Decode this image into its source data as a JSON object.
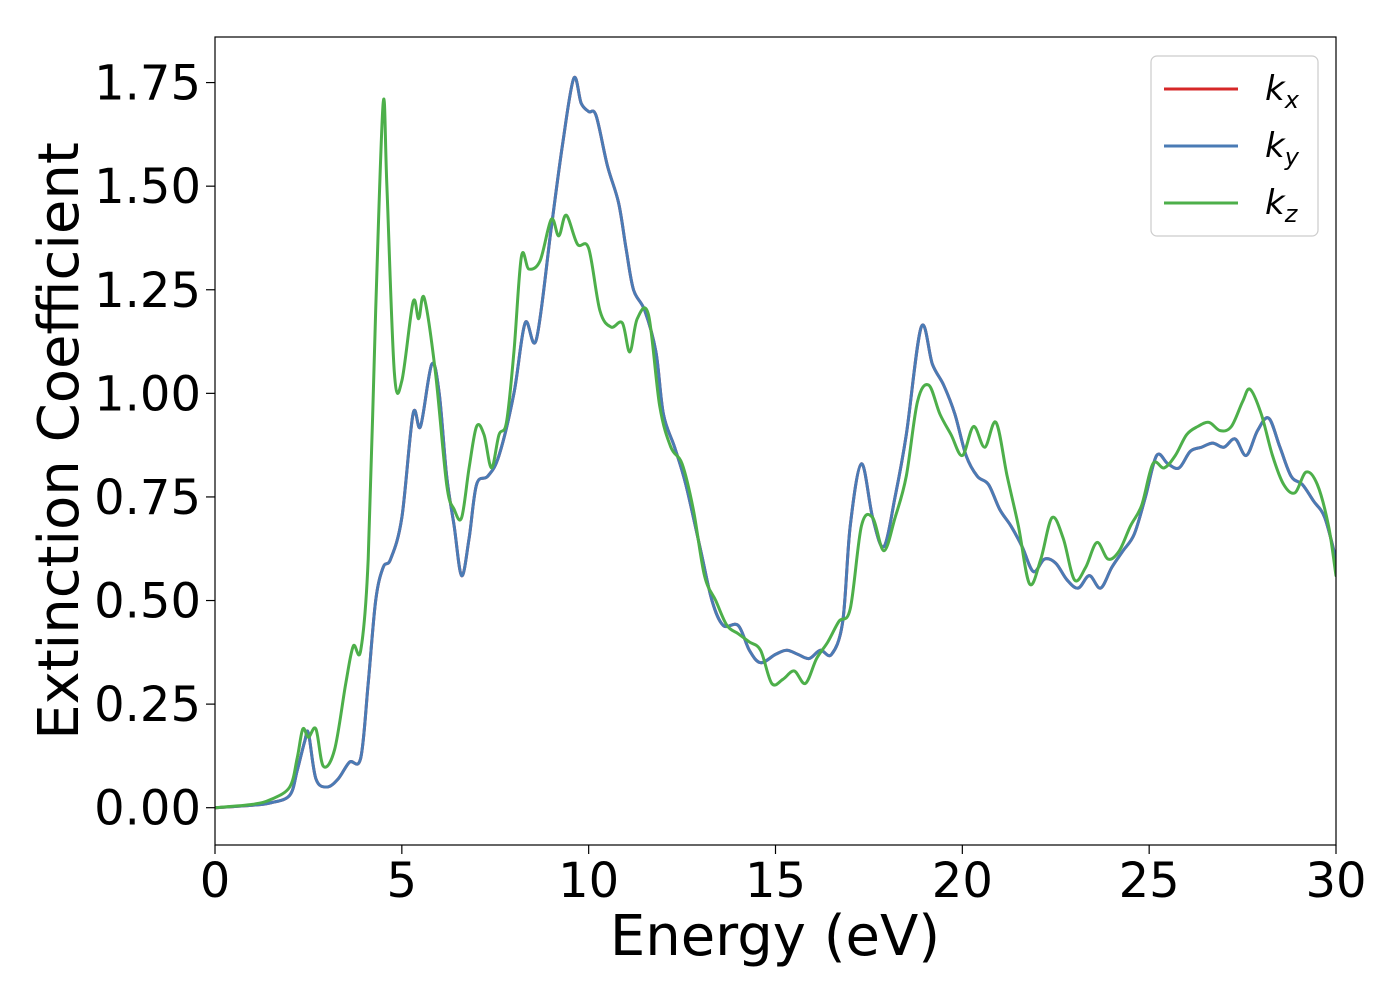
{
  "chart_data": {
    "type": "line",
    "title": "",
    "xlabel": "Energy (eV)",
    "ylabel": "Extinction Coefficient",
    "xlim": [
      0,
      30
    ],
    "ylim": [
      -0.09,
      1.86
    ],
    "xticks": [
      0,
      5,
      10,
      15,
      20,
      25,
      30
    ],
    "xtick_labels": [
      "0",
      "5",
      "10",
      "15",
      "20",
      "25",
      "30"
    ],
    "yticks": [
      0,
      0.25,
      0.5,
      0.75,
      1.0,
      1.25,
      1.5,
      1.75
    ],
    "ytick_labels": [
      "0.00",
      "0.25",
      "0.50",
      "0.75",
      "1.00",
      "1.25",
      "1.50",
      "1.75"
    ],
    "grid": false,
    "legend": "top-right",
    "series": [
      {
        "name": "kx",
        "base": "k",
        "sub": "x",
        "color": "#d62728",
        "x": [
          0,
          1,
          1.5,
          2,
          2.2,
          2.4,
          2.5,
          2.7,
          3,
          3.3,
          3.6,
          3.9,
          4.1,
          4.3,
          4.5,
          4.7,
          5,
          5.3,
          5.5,
          5.8,
          6,
          6.2,
          6.4,
          6.6,
          6.8,
          7,
          7.3,
          7.6,
          8,
          8.3,
          8.6,
          9,
          9.3,
          9.6,
          9.8,
          10,
          10.2,
          10.5,
          10.8,
          11,
          11.2,
          11.5,
          11.8,
          12,
          12.3,
          12.6,
          13,
          13.3,
          13.6,
          14,
          14.3,
          14.6,
          15,
          15.3,
          15.6,
          15.9,
          16.2,
          16.5,
          16.8,
          17,
          17.3,
          17.6,
          17.9,
          18.2,
          18.5,
          18.9,
          19.2,
          19.5,
          19.8,
          20.1,
          20.4,
          20.7,
          21,
          21.3,
          21.6,
          21.9,
          22.2,
          22.5,
          22.8,
          23.1,
          23.4,
          23.7,
          24,
          24.3,
          24.6,
          24.9,
          25.2,
          25.5,
          25.8,
          26.1,
          26.4,
          26.7,
          27,
          27.3,
          27.6,
          27.9,
          28.2,
          28.5,
          28.8,
          29.1,
          29.4,
          29.7,
          30
        ],
        "y": [
          0,
          0.006,
          0.012,
          0.03,
          0.09,
          0.16,
          0.18,
          0.07,
          0.05,
          0.07,
          0.11,
          0.12,
          0.3,
          0.5,
          0.58,
          0.6,
          0.7,
          0.95,
          0.92,
          1.07,
          1.0,
          0.8,
          0.68,
          0.56,
          0.65,
          0.78,
          0.8,
          0.85,
          1.0,
          1.17,
          1.13,
          1.4,
          1.6,
          1.76,
          1.7,
          1.68,
          1.67,
          1.55,
          1.46,
          1.35,
          1.25,
          1.2,
          1.1,
          0.95,
          0.87,
          0.78,
          0.62,
          0.5,
          0.44,
          0.44,
          0.38,
          0.35,
          0.37,
          0.38,
          0.37,
          0.36,
          0.38,
          0.37,
          0.45,
          0.68,
          0.83,
          0.7,
          0.63,
          0.75,
          0.9,
          1.16,
          1.07,
          1.02,
          0.95,
          0.85,
          0.8,
          0.78,
          0.72,
          0.68,
          0.63,
          0.57,
          0.6,
          0.59,
          0.55,
          0.53,
          0.56,
          0.53,
          0.58,
          0.62,
          0.66,
          0.75,
          0.85,
          0.83,
          0.82,
          0.86,
          0.87,
          0.88,
          0.87,
          0.89,
          0.85,
          0.91,
          0.94,
          0.87,
          0.8,
          0.78,
          0.74,
          0.7,
          0.6
        ]
      },
      {
        "name": "ky",
        "base": "k",
        "sub": "y",
        "color": "#4a7bb5",
        "x": [
          0,
          1,
          1.5,
          2,
          2.2,
          2.4,
          2.5,
          2.7,
          3,
          3.3,
          3.6,
          3.9,
          4.1,
          4.3,
          4.5,
          4.7,
          5,
          5.3,
          5.5,
          5.8,
          6,
          6.2,
          6.4,
          6.6,
          6.8,
          7,
          7.3,
          7.6,
          8,
          8.3,
          8.6,
          9,
          9.3,
          9.6,
          9.8,
          10,
          10.2,
          10.5,
          10.8,
          11,
          11.2,
          11.5,
          11.8,
          12,
          12.3,
          12.6,
          13,
          13.3,
          13.6,
          14,
          14.3,
          14.6,
          15,
          15.3,
          15.6,
          15.9,
          16.2,
          16.5,
          16.8,
          17,
          17.3,
          17.6,
          17.9,
          18.2,
          18.5,
          18.9,
          19.2,
          19.5,
          19.8,
          20.1,
          20.4,
          20.7,
          21,
          21.3,
          21.6,
          21.9,
          22.2,
          22.5,
          22.8,
          23.1,
          23.4,
          23.7,
          24,
          24.3,
          24.6,
          24.9,
          25.2,
          25.5,
          25.8,
          26.1,
          26.4,
          26.7,
          27,
          27.3,
          27.6,
          27.9,
          28.2,
          28.5,
          28.8,
          29.1,
          29.4,
          29.7,
          30
        ],
        "y": [
          0,
          0.006,
          0.012,
          0.03,
          0.09,
          0.16,
          0.18,
          0.07,
          0.05,
          0.07,
          0.11,
          0.12,
          0.3,
          0.5,
          0.58,
          0.6,
          0.7,
          0.95,
          0.92,
          1.07,
          1.0,
          0.8,
          0.68,
          0.56,
          0.65,
          0.78,
          0.8,
          0.85,
          1.0,
          1.17,
          1.13,
          1.4,
          1.6,
          1.76,
          1.7,
          1.68,
          1.67,
          1.55,
          1.46,
          1.35,
          1.25,
          1.2,
          1.1,
          0.95,
          0.87,
          0.78,
          0.62,
          0.5,
          0.44,
          0.44,
          0.38,
          0.35,
          0.37,
          0.38,
          0.37,
          0.36,
          0.38,
          0.37,
          0.45,
          0.68,
          0.83,
          0.7,
          0.63,
          0.75,
          0.9,
          1.16,
          1.07,
          1.02,
          0.95,
          0.85,
          0.8,
          0.78,
          0.72,
          0.68,
          0.63,
          0.57,
          0.6,
          0.59,
          0.55,
          0.53,
          0.56,
          0.53,
          0.58,
          0.62,
          0.66,
          0.75,
          0.85,
          0.83,
          0.82,
          0.86,
          0.87,
          0.88,
          0.87,
          0.89,
          0.85,
          0.91,
          0.94,
          0.87,
          0.8,
          0.78,
          0.74,
          0.7,
          0.6
        ]
      },
      {
        "name": "kz",
        "base": "k",
        "sub": "z",
        "color": "#4daf4a",
        "x": [
          0,
          1,
          1.5,
          2,
          2.2,
          2.35,
          2.5,
          2.7,
          2.9,
          3.2,
          3.5,
          3.7,
          3.9,
          4.1,
          4.3,
          4.5,
          4.6,
          4.8,
          5,
          5.3,
          5.45,
          5.6,
          5.9,
          6.2,
          6.4,
          6.6,
          6.8,
          7,
          7.2,
          7.4,
          7.6,
          7.8,
          8,
          8.2,
          8.4,
          8.7,
          9,
          9.2,
          9.4,
          9.7,
          10,
          10.3,
          10.6,
          10.9,
          11.1,
          11.3,
          11.6,
          11.9,
          12.2,
          12.5,
          12.8,
          13.1,
          13.4,
          13.7,
          14,
          14.3,
          14.6,
          14.9,
          15.2,
          15.5,
          15.8,
          16.1,
          16.4,
          16.7,
          17,
          17.3,
          17.6,
          17.9,
          18.2,
          18.5,
          18.8,
          19.1,
          19.4,
          19.7,
          20,
          20.3,
          20.6,
          20.9,
          21.2,
          21.5,
          21.8,
          22.1,
          22.4,
          22.7,
          23,
          23.3,
          23.6,
          23.9,
          24.2,
          24.5,
          24.8,
          25.1,
          25.4,
          25.7,
          26,
          26.3,
          26.6,
          26.9,
          27.2,
          27.5,
          27.7,
          28,
          28.3,
          28.6,
          28.9,
          29.2,
          29.5,
          29.8,
          30
        ],
        "y": [
          0,
          0.008,
          0.02,
          0.05,
          0.12,
          0.19,
          0.17,
          0.19,
          0.1,
          0.14,
          0.3,
          0.39,
          0.38,
          0.6,
          1.2,
          1.7,
          1.5,
          1.05,
          1.03,
          1.22,
          1.18,
          1.23,
          1.05,
          0.78,
          0.72,
          0.7,
          0.82,
          0.92,
          0.9,
          0.82,
          0.9,
          0.93,
          1.1,
          1.33,
          1.3,
          1.32,
          1.42,
          1.38,
          1.43,
          1.36,
          1.35,
          1.2,
          1.16,
          1.17,
          1.1,
          1.18,
          1.19,
          0.97,
          0.87,
          0.83,
          0.72,
          0.56,
          0.5,
          0.44,
          0.42,
          0.4,
          0.38,
          0.3,
          0.31,
          0.33,
          0.3,
          0.36,
          0.4,
          0.45,
          0.48,
          0.68,
          0.7,
          0.62,
          0.7,
          0.8,
          0.98,
          1.02,
          0.95,
          0.9,
          0.85,
          0.92,
          0.87,
          0.93,
          0.8,
          0.68,
          0.54,
          0.6,
          0.7,
          0.65,
          0.55,
          0.58,
          0.64,
          0.6,
          0.62,
          0.68,
          0.73,
          0.83,
          0.82,
          0.85,
          0.9,
          0.92,
          0.93,
          0.91,
          0.92,
          0.98,
          1.01,
          0.95,
          0.85,
          0.78,
          0.76,
          0.81,
          0.78,
          0.68,
          0.56
        ]
      }
    ]
  }
}
